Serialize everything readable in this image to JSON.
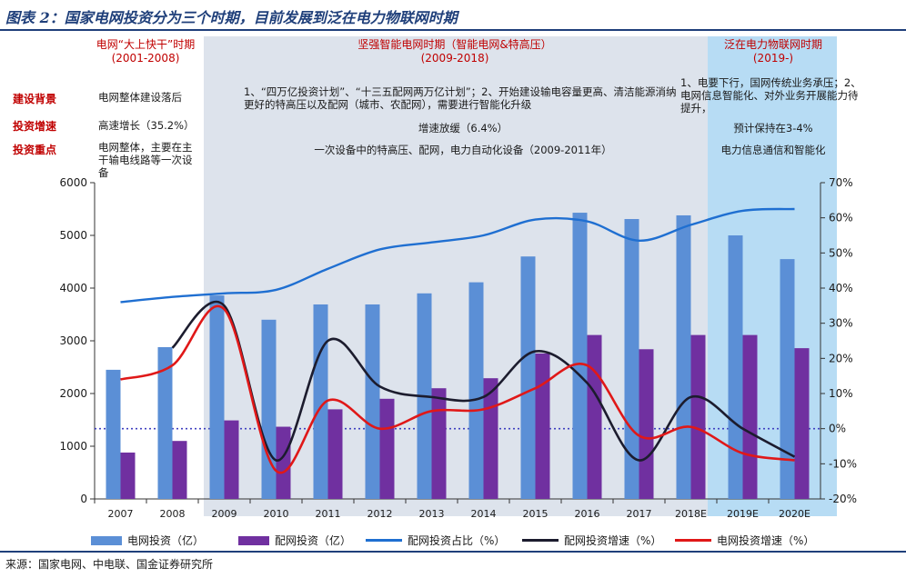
{
  "figure_title": "图表 2：国家电网投资分为三个时期，目前发展到泛在电力物联网时期",
  "source": "来源：国家电网、中电联、国金证券研究所",
  "periods": [
    {
      "name": "电网“大上快干”时期",
      "years": "(2001-2008)"
    },
    {
      "name": "坚强智能电网时期（智能电网&特高压）",
      "years": "(2009-2018)"
    },
    {
      "name": "泛在电力物联网时期",
      "years": "(2019-)"
    }
  ],
  "row_labels": {
    "background": "建设背景",
    "growth": "投资增速",
    "focus": "投资重点"
  },
  "cells": {
    "p1": {
      "background": "电网整体建设落后",
      "growth": "高速增长（35.2%）",
      "focus": "电网整体，主要在主干输电线路等一次设备"
    },
    "p2": {
      "background": "1、“四万亿投资计划”、“十三五配网两万亿计划”；2、开始建设输电容量更高、清洁能源消纳更好的特高压以及配网（城市、农配网），需要进行智能化升级",
      "growth": "增速放缓（6.4%）",
      "focus": "一次设备中的特高压、配网，电力自动化设备（2009-2011年）"
    },
    "p3": {
      "background": "1、电要下行，国网传统业务承压；2、电网信息智能化、对外业务开展能力待提升，",
      "growth": "预计保持在3-4%",
      "focus": "电力信息通信和智能化"
    }
  },
  "colors": {
    "grid_invest_bar": "#5b8fd6",
    "dist_invest_bar": "#7030a0",
    "share_line": "#1f6fd1",
    "dist_growth_line": "#1c1c2e",
    "grid_growth_line": "#e01818",
    "panel_blue": "#b7dcf4",
    "panel_gray": "#dde3ec",
    "zero_line": "#4040c0"
  },
  "chart_data": {
    "type": "bar",
    "categories": [
      "2007",
      "2008",
      "2009",
      "2010",
      "2011",
      "2012",
      "2013",
      "2014",
      "2015",
      "2016",
      "2017",
      "2018E",
      "2019E",
      "2020E"
    ],
    "y_left": {
      "min": 0,
      "max": 6000,
      "ticks": [
        "0",
        "1000",
        "2000",
        "3000",
        "4000",
        "5000",
        "6000"
      ]
    },
    "y_right": {
      "min": -20,
      "max": 70,
      "ticks": [
        "-20%",
        "-10%",
        "0%",
        "10%",
        "20%",
        "30%",
        "40%",
        "50%",
        "60%",
        "70%"
      ]
    },
    "series": [
      {
        "name": "电网投资（亿）",
        "kind": "bar",
        "axis": "left",
        "values": [
          2450,
          2880,
          3860,
          3400,
          3690,
          3690,
          3900,
          4110,
          4600,
          5430,
          5310,
          5380,
          5000,
          4550
        ]
      },
      {
        "name": "配网投资（亿）",
        "kind": "bar",
        "axis": "left",
        "values": [
          880,
          1100,
          1490,
          1370,
          1700,
          1900,
          2100,
          2290,
          2760,
          3110,
          2840,
          3110,
          3110,
          2860
        ]
      },
      {
        "name": "配网投资占比（%）",
        "kind": "line",
        "axis": "right",
        "values": [
          36,
          37.5,
          38.5,
          39.5,
          45.5,
          51,
          53,
          55,
          59.5,
          59,
          53.5,
          58,
          62,
          62.5
        ]
      },
      {
        "name": "配网投资增速（%）",
        "kind": "line",
        "axis": "right",
        "values": [
          null,
          23,
          35,
          -9,
          25,
          12,
          9,
          9,
          22,
          13,
          -9,
          9,
          0,
          -8
        ]
      },
      {
        "name": "电网投资增速（%）",
        "kind": "line",
        "axis": "right",
        "values": [
          14,
          18,
          34,
          -12,
          8,
          0,
          5,
          5.5,
          11.5,
          18,
          -2,
          0.5,
          -7,
          -9
        ]
      }
    ]
  }
}
